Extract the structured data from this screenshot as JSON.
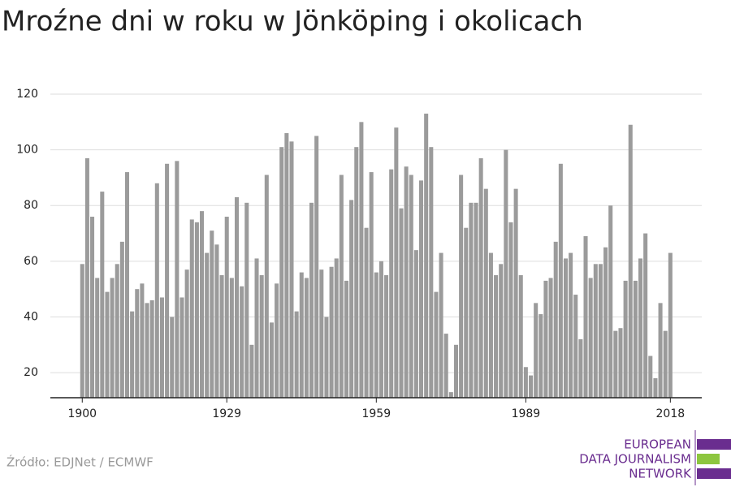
{
  "chart_data": {
    "type": "bar",
    "title": "Mroźne dni w roku w Jönköping i okolicach",
    "x": [
      1900,
      1901,
      1902,
      1903,
      1904,
      1905,
      1906,
      1907,
      1908,
      1909,
      1910,
      1911,
      1912,
      1913,
      1914,
      1915,
      1916,
      1917,
      1918,
      1919,
      1920,
      1921,
      1922,
      1923,
      1924,
      1925,
      1926,
      1927,
      1928,
      1929,
      1930,
      1931,
      1932,
      1933,
      1934,
      1935,
      1936,
      1937,
      1938,
      1939,
      1940,
      1941,
      1942,
      1943,
      1944,
      1945,
      1946,
      1947,
      1948,
      1949,
      1950,
      1951,
      1952,
      1953,
      1954,
      1955,
      1956,
      1957,
      1958,
      1959,
      1960,
      1961,
      1962,
      1963,
      1964,
      1965,
      1966,
      1967,
      1968,
      1969,
      1970,
      1971,
      1972,
      1973,
      1974,
      1975,
      1976,
      1977,
      1978,
      1979,
      1980,
      1981,
      1982,
      1983,
      1984,
      1985,
      1986,
      1987,
      1988,
      1989,
      1990,
      1991,
      1992,
      1993,
      1994,
      1995,
      1996,
      1997,
      1998,
      1999,
      2000,
      2001,
      2002,
      2003,
      2004,
      2005,
      2006,
      2007,
      2008,
      2009,
      2010,
      2011,
      2012,
      2013,
      2014,
      2015,
      2016,
      2017,
      2018
    ],
    "values": [
      59,
      97,
      76,
      54,
      85,
      49,
      54,
      59,
      67,
      92,
      42,
      50,
      52,
      45,
      46,
      88,
      47,
      95,
      40,
      96,
      47,
      57,
      75,
      74,
      78,
      63,
      71,
      66,
      55,
      76,
      54,
      83,
      51,
      81,
      30,
      61,
      55,
      91,
      38,
      52,
      101,
      106,
      103,
      42,
      56,
      54,
      81,
      105,
      57,
      40,
      58,
      61,
      91,
      53,
      82,
      101,
      110,
      72,
      92,
      56,
      60,
      55,
      93,
      108,
      79,
      94,
      91,
      64,
      89,
      113,
      101,
      49,
      63,
      34,
      13,
      30,
      91,
      72,
      81,
      81,
      97,
      86,
      63,
      55,
      59,
      100,
      74,
      86,
      55,
      22,
      19,
      45,
      41,
      53,
      54,
      67,
      95,
      61,
      63,
      48,
      32,
      69,
      54,
      59,
      59,
      65,
      80,
      35,
      36,
      53,
      109,
      53,
      61,
      70,
      26,
      18,
      45,
      35,
      63
    ],
    "color": "#9b9b9b",
    "xlim": [
      1893.6,
      2024.3
    ],
    "xticks": [
      1900,
      1929,
      1959,
      1989,
      2018
    ],
    "ylim": [
      11,
      120
    ],
    "yticks": [
      20,
      40,
      60,
      80,
      100,
      120
    ],
    "grid": true
  },
  "source": "Źródło: EDJNet / ECMWF",
  "logo": [
    "EUROPEAN",
    "DATA JOURNALISM",
    "NETWORK"
  ]
}
